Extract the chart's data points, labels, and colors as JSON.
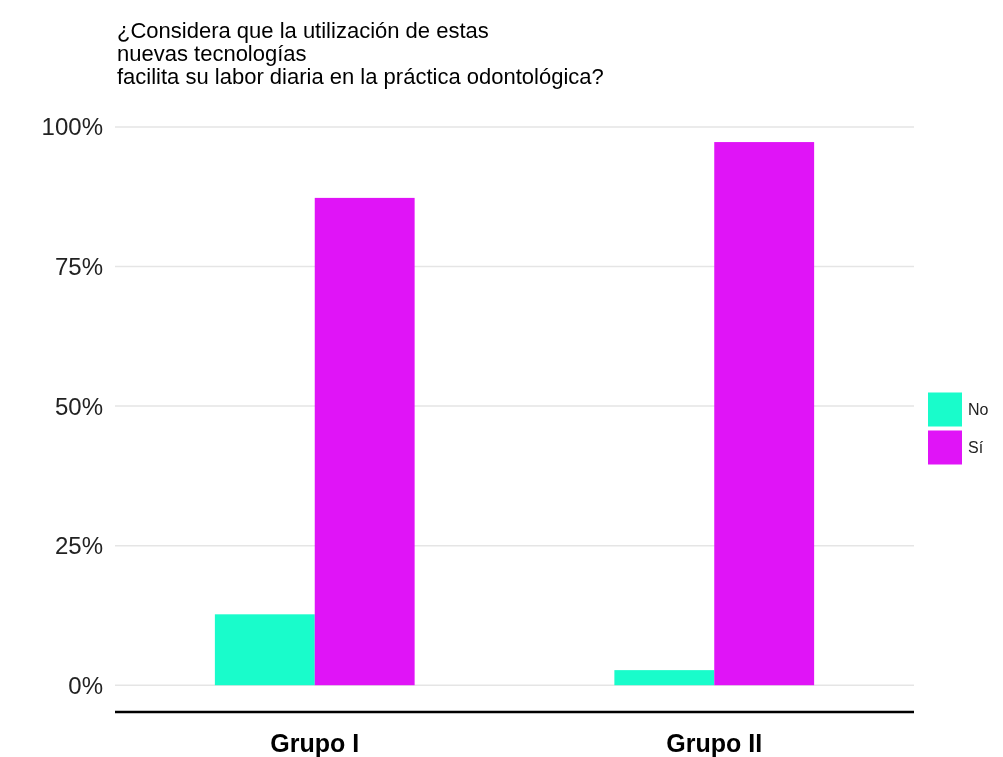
{
  "chart_data": {
    "type": "bar",
    "title": "¿Considera que la utilización de estas\nnuevas tecnologías\nfacilita su labor diaria en la práctica odontológica?",
    "categories": [
      "Grupo I",
      "Grupo II"
    ],
    "series": [
      {
        "name": "No",
        "color": "#19fccb",
        "values": [
          12.7,
          2.7
        ]
      },
      {
        "name": "Sí",
        "color": "#e014f7",
        "values": [
          87.3,
          97.3
        ]
      }
    ],
    "ylim": [
      -4.8,
      100
    ],
    "yticks": [
      {
        "value": 0,
        "label": "0%"
      },
      {
        "value": 25,
        "label": "25%"
      },
      {
        "value": 50,
        "label": "50%"
      },
      {
        "value": 75,
        "label": "75%"
      },
      {
        "value": 100,
        "label": "100%"
      }
    ],
    "grid": "y",
    "legend": "right"
  }
}
